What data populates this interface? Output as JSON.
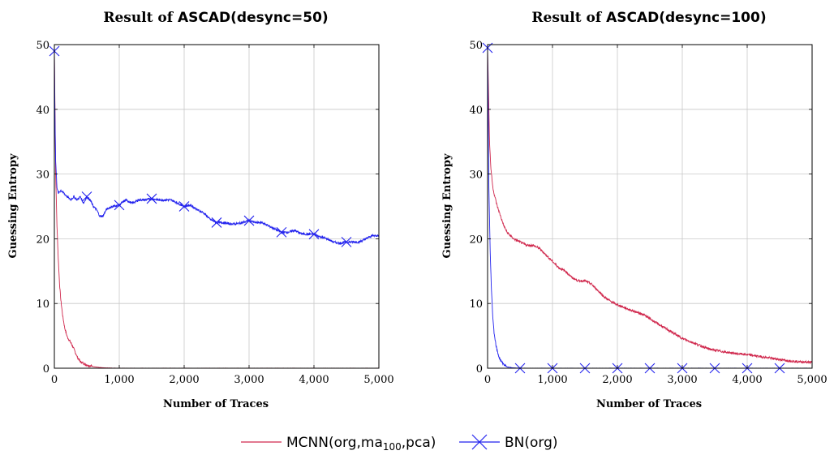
{
  "figure": {
    "legend": {
      "entries": [
        {
          "label": "MCNN(org,ma",
          "subscript": "100",
          "suffix": ",pca)",
          "color": "#d0284d",
          "marker": "none"
        },
        {
          "label": "BN(org)",
          "color": "#2222ee",
          "marker": "x"
        }
      ]
    }
  },
  "chart_data": [
    {
      "type": "line",
      "title_prefix": "Result of ",
      "title_bold": "ASCAD(desync=50)",
      "xlabel": "Number of Traces",
      "ylabel": "Guessing Entropy",
      "xlim": [
        0,
        5000
      ],
      "ylim": [
        0,
        50
      ],
      "xticks": [
        0,
        1000,
        2000,
        3000,
        4000,
        5000
      ],
      "xtick_labels": [
        "0",
        "1,000",
        "2,000",
        "3,000",
        "4,000",
        "5,000"
      ],
      "yticks": [
        0,
        10,
        20,
        30,
        40,
        50
      ],
      "ytick_labels": [
        "0",
        "10",
        "20",
        "30",
        "40",
        "50"
      ],
      "grid": true,
      "series": [
        {
          "name": "MCNN(org,ma100,pca)",
          "color": "#d0284d",
          "x": [
            0,
            10,
            20,
            40,
            60,
            80,
            100,
            130,
            160,
            200,
            250,
            300,
            350,
            400,
            500,
            600,
            700,
            800,
            1000,
            1500,
            2000,
            3000,
            4000,
            5000
          ],
          "y": [
            49,
            40,
            30,
            22,
            17,
            13,
            10.5,
            8,
            6.2,
            4.8,
            4.0,
            3.0,
            1.8,
            1.0,
            0.5,
            0.25,
            0.1,
            0.05,
            0,
            0,
            0,
            0,
            0,
            0
          ]
        },
        {
          "name": "BN(org)",
          "color": "#2222ee",
          "x": [
            0,
            10,
            20,
            40,
            60,
            100,
            150,
            200,
            250,
            300,
            350,
            400,
            450,
            500,
            550,
            600,
            650,
            700,
            750,
            800,
            850,
            900,
            1000,
            1100,
            1200,
            1300,
            1400,
            1500,
            1600,
            1700,
            1800,
            1900,
            2000,
            2100,
            2200,
            2300,
            2400,
            2500,
            2600,
            2700,
            2800,
            2900,
            3000,
            3100,
            3200,
            3300,
            3400,
            3500,
            3600,
            3700,
            3800,
            3900,
            4000,
            4100,
            4200,
            4300,
            4400,
            4500,
            4600,
            4700,
            4800,
            4900,
            5000
          ],
          "y": [
            49,
            38,
            32,
            28,
            27,
            27.5,
            27,
            26.5,
            26,
            26.5,
            26,
            26.5,
            25.5,
            26.5,
            26,
            25,
            24.5,
            23.5,
            23.5,
            24.5,
            24.8,
            25,
            25.2,
            26,
            25.5,
            26,
            26,
            26.2,
            26,
            26,
            26,
            25.5,
            25,
            25.2,
            24.5,
            24,
            23,
            22.5,
            22.5,
            22.3,
            22.3,
            22.5,
            22.8,
            22.5,
            22.5,
            22,
            21.5,
            21,
            21,
            21.3,
            20.8,
            20.7,
            20.7,
            20.3,
            20,
            19.5,
            19.3,
            19.5,
            19.5,
            19.5,
            20,
            20.5,
            20.5
          ]
        }
      ]
    },
    {
      "type": "line",
      "title_prefix": "Result of ",
      "title_bold": "ASCAD(desync=100)",
      "xlabel": "Number of Traces",
      "ylabel": "Guessing Entropy",
      "xlim": [
        0,
        5000
      ],
      "ylim": [
        0,
        50
      ],
      "xticks": [
        0,
        1000,
        2000,
        3000,
        4000,
        5000
      ],
      "xtick_labels": [
        "0",
        "1,000",
        "2,000",
        "3,000",
        "4,000",
        "5,000"
      ],
      "yticks": [
        0,
        10,
        20,
        30,
        40,
        50
      ],
      "ytick_labels": [
        "0",
        "10",
        "20",
        "30",
        "40",
        "50"
      ],
      "grid": true,
      "series": [
        {
          "name": "MCNN(org,ma100,pca)",
          "color": "#d0284d",
          "x": [
            0,
            10,
            30,
            50,
            80,
            100,
            150,
            200,
            250,
            300,
            400,
            500,
            600,
            700,
            800,
            900,
            1000,
            1100,
            1200,
            1300,
            1400,
            1500,
            1600,
            1700,
            1800,
            1900,
            2000,
            2200,
            2400,
            2600,
            2800,
            3000,
            3200,
            3400,
            3600,
            3800,
            4000,
            4200,
            4400,
            4600,
            4800,
            5000
          ],
          "y": [
            49,
            45,
            35,
            31,
            28,
            27,
            25,
            23.5,
            22,
            21,
            20,
            19.5,
            19,
            19,
            18.5,
            17.5,
            16.5,
            15.5,
            15,
            14,
            13.5,
            13.5,
            13,
            12,
            11,
            10.3,
            9.8,
            9,
            8.3,
            7,
            5.8,
            4.6,
            3.8,
            3.0,
            2.6,
            2.3,
            2.1,
            1.8,
            1.5,
            1.2,
            1.0,
            0.9
          ]
        },
        {
          "name": "BN(org)",
          "color": "#2222ee",
          "x": [
            0,
            10,
            20,
            40,
            60,
            80,
            100,
            130,
            160,
            200,
            250,
            300,
            400,
            500,
            1000,
            1500,
            2000,
            2500,
            3000,
            3500,
            4000,
            4500,
            5000
          ],
          "y": [
            49.5,
            40,
            28,
            18,
            12,
            8,
            5.5,
            3.5,
            2.2,
            1.2,
            0.6,
            0.2,
            0.05,
            0,
            0,
            0,
            0,
            0,
            0,
            0,
            0,
            0,
            0
          ],
          "markers_x": [
            0,
            500,
            1000,
            1500,
            2000,
            2500,
            3000,
            3500,
            4000,
            4500
          ]
        }
      ]
    }
  ]
}
